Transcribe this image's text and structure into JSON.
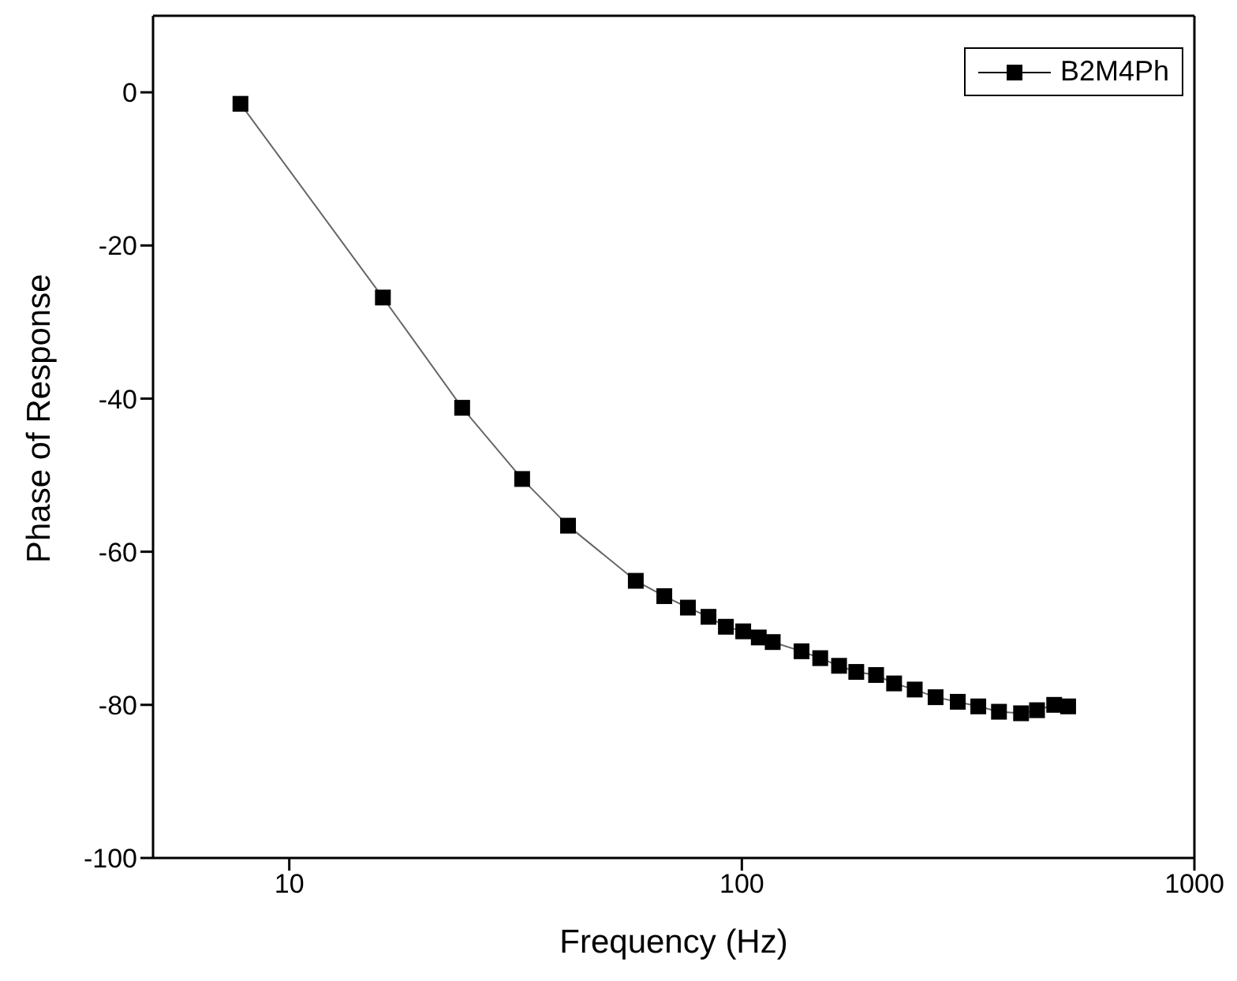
{
  "chart_data": {
    "type": "line",
    "xlabel": "Frequency (Hz)",
    "ylabel": "Phase of Response",
    "log": "x",
    "xlim": [
      5,
      1000
    ],
    "xticks": [
      10,
      100,
      1000
    ],
    "ylim": [
      -100,
      10
    ],
    "yticks": [
      -100,
      -80,
      -60,
      -40,
      -20,
      0
    ],
    "legend": "top right",
    "marker": "square",
    "line_style": "solid",
    "series": [
      {
        "name": "B2M4Ph",
        "color": "#000000",
        "x": [
          7.8,
          16.1,
          24.1,
          32.7,
          41.3,
          58.3,
          67.4,
          76,
          84.4,
          92.2,
          100.7,
          109,
          117,
          135.5,
          149,
          164,
          179,
          198,
          217,
          241,
          268,
          300,
          333,
          370,
          414,
          449,
          490,
          526
        ],
        "values": [
          -1.5,
          -26.8,
          -41.2,
          -50.5,
          -56.6,
          -63.8,
          -65.8,
          -67.3,
          -68.5,
          -69.8,
          -70.4,
          -71.2,
          -71.8,
          -73,
          -73.9,
          -74.9,
          -75.7,
          -76.1,
          -77.2,
          -78,
          -79,
          -79.6,
          -80.2,
          -80.9,
          -81.1,
          -80.7,
          -80,
          -80.2
        ]
      }
    ]
  }
}
